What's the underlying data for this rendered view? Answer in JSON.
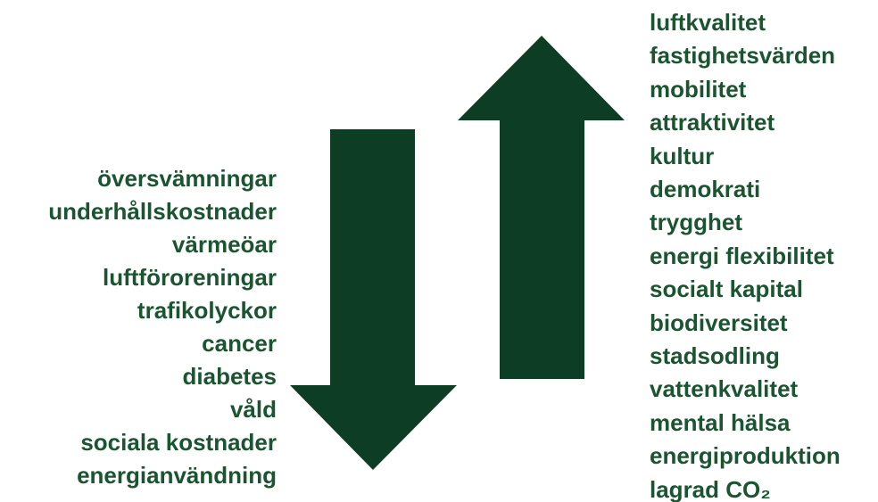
{
  "decreases": [
    "översvämningar",
    "underhållskostnader",
    "värmeöar",
    "luftföroreningar",
    "trafikolyckor",
    "cancer",
    "diabetes",
    "våld",
    "sociala kostnader",
    "energianvändning"
  ],
  "increases": [
    "luftkvalitet",
    "fastighetsvärden",
    "mobilitet",
    "attraktivitet",
    "kultur",
    "demokrati",
    "trygghet",
    "energi flexibilitet",
    "socialt kapital",
    "biodiversitet",
    "stadsodling",
    "vattenkvalitet",
    "mental hälsa",
    "energiproduktion",
    "lagrad CO₂"
  ]
}
